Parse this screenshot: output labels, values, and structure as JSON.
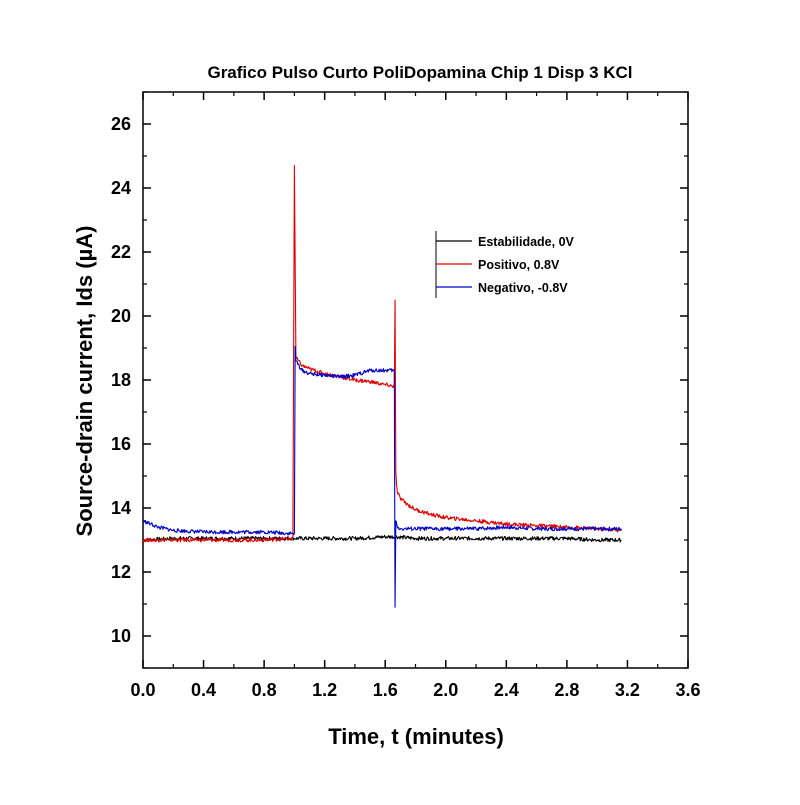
{
  "chart_data": {
    "type": "line",
    "title": "Grafico Pulso Curto PoliDopamina Chip 1 Disp 3 KCl",
    "xlabel": "Time, t (minutes)",
    "ylabel": "Source-drain current, Ids (µA)",
    "xlim": [
      0.0,
      3.6
    ],
    "ylim": [
      9.0,
      27.0
    ],
    "x_ticks": [
      0.0,
      0.4,
      0.8,
      1.2,
      1.6,
      2.0,
      2.4,
      2.8,
      3.2,
      3.6
    ],
    "x_tick_labels": [
      "0.0",
      "0.4",
      "0.8",
      "1.2",
      "1.6",
      "2.0",
      "2.4",
      "2.8",
      "3.2",
      "3.6"
    ],
    "y_ticks": [
      10,
      12,
      14,
      16,
      18,
      20,
      22,
      24,
      26
    ],
    "y_tick_labels": [
      "10",
      "12",
      "14",
      "16",
      "18",
      "20",
      "22",
      "24",
      "26"
    ],
    "grid": false,
    "legend_position": "top-right",
    "series": [
      {
        "name": "Estabilidade, 0V",
        "color": "#000000",
        "x": [
          0.0,
          0.2,
          0.4,
          0.6,
          0.8,
          1.0,
          1.2,
          1.4,
          1.6,
          1.67,
          1.8,
          2.0,
          2.2,
          2.4,
          2.6,
          2.8,
          3.0,
          3.16
        ],
        "y": [
          13.0,
          13.05,
          13.05,
          13.05,
          13.05,
          13.05,
          13.05,
          13.05,
          13.1,
          13.1,
          13.05,
          13.05,
          13.05,
          13.05,
          13.05,
          13.05,
          13.0,
          13.0
        ]
      },
      {
        "name": "Positivo, 0.8V",
        "color": "#e00000",
        "x": [
          0.0,
          0.2,
          0.4,
          0.6,
          0.8,
          0.99,
          1.0,
          1.01,
          1.05,
          1.1,
          1.2,
          1.3,
          1.4,
          1.5,
          1.6,
          1.66,
          1.665,
          1.67,
          1.675,
          1.68,
          1.7,
          1.75,
          1.8,
          1.9,
          2.0,
          2.2,
          2.4,
          2.6,
          2.8,
          3.0,
          3.16
        ],
        "y": [
          13.0,
          13.0,
          13.0,
          13.0,
          13.0,
          13.05,
          24.7,
          18.7,
          18.45,
          18.35,
          18.2,
          18.1,
          18.0,
          17.95,
          17.85,
          17.8,
          20.5,
          15.1,
          14.7,
          14.5,
          14.3,
          14.1,
          13.95,
          13.8,
          13.7,
          13.6,
          13.5,
          13.45,
          13.4,
          13.35,
          13.3
        ]
      },
      {
        "name": "Negativo, -0.8V",
        "color": "#0000c8",
        "x": [
          0.0,
          0.05,
          0.1,
          0.2,
          0.4,
          0.6,
          0.8,
          0.99,
          1.0,
          1.005,
          1.01,
          1.05,
          1.1,
          1.2,
          1.3,
          1.4,
          1.5,
          1.6,
          1.66,
          1.665,
          1.67,
          1.675,
          1.68,
          1.7,
          1.8,
          2.0,
          2.2,
          2.4,
          2.6,
          2.8,
          3.0,
          3.16
        ],
        "y": [
          13.6,
          13.5,
          13.4,
          13.3,
          13.25,
          13.25,
          13.25,
          13.2,
          13.2,
          19.05,
          18.6,
          18.3,
          18.2,
          18.15,
          18.1,
          18.15,
          18.3,
          18.3,
          18.3,
          10.9,
          13.6,
          13.5,
          13.4,
          13.35,
          13.35,
          13.35,
          13.35,
          13.4,
          13.35,
          13.35,
          13.35,
          13.35
        ]
      }
    ]
  }
}
